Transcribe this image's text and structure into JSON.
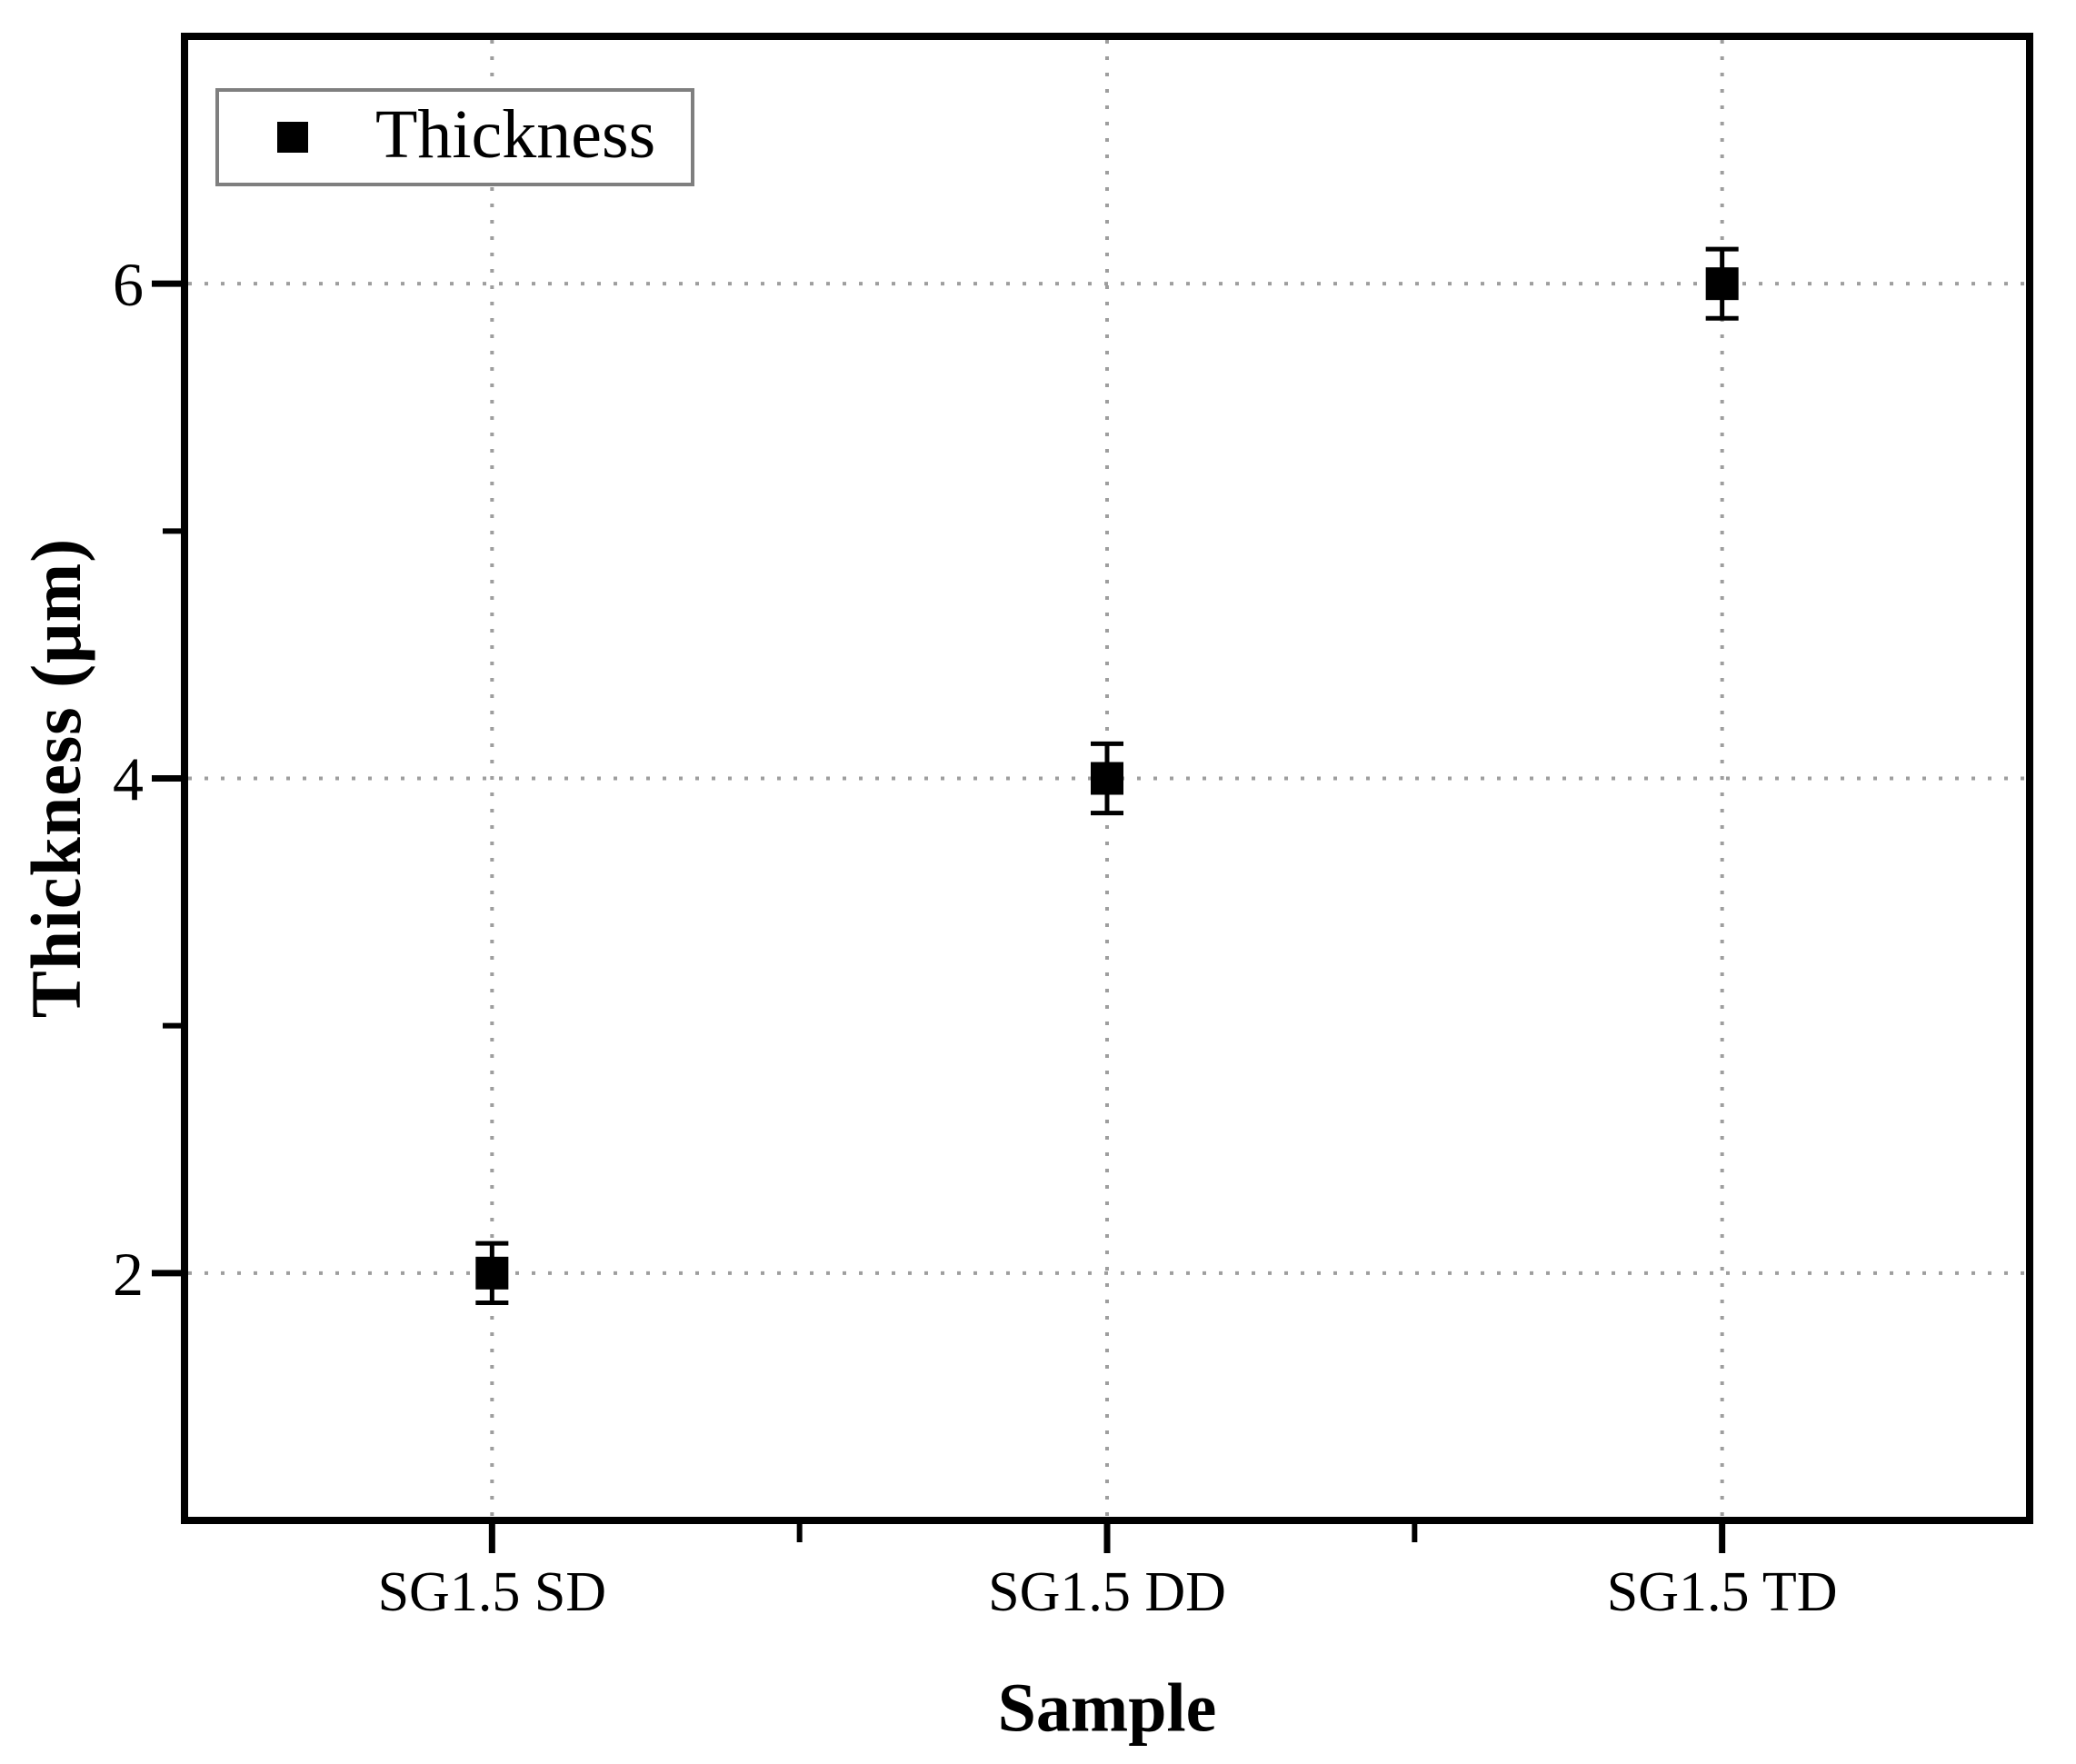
{
  "chart_data": {
    "type": "scatter",
    "title": "",
    "xlabel": "Sample",
    "ylabel": "Thickness (μm)",
    "categories": [
      "SG1.5 SD",
      "SG1.5 DD",
      "SG1.5 TD"
    ],
    "series": [
      {
        "name": "Thickness",
        "marker": "filled-square",
        "color": "#000000",
        "values": [
          2.0,
          4.0,
          6.0
        ],
        "y_errors": [
          0.12,
          0.14,
          0.14
        ]
      }
    ],
    "ylim": [
      1,
      7
    ],
    "y_major_ticks": [
      2,
      4,
      6
    ],
    "y_minor_ticks": [
      3,
      5
    ],
    "x_minor_tick_boundaries": [
      1,
      2
    ],
    "grid": {
      "style": "dotted",
      "horizontal_at_y_major": true,
      "vertical_at_categories": true
    },
    "legend": {
      "position": "top-left",
      "entries": [
        {
          "label": "Thickness",
          "marker": "filled-square",
          "color": "#000000"
        }
      ]
    }
  },
  "colors": {
    "background": "#ffffff",
    "axis": "#000000",
    "text": "#000000",
    "marker": "#000000",
    "grid": "#9e9e9e",
    "legend_border": "#7f7f7f"
  }
}
